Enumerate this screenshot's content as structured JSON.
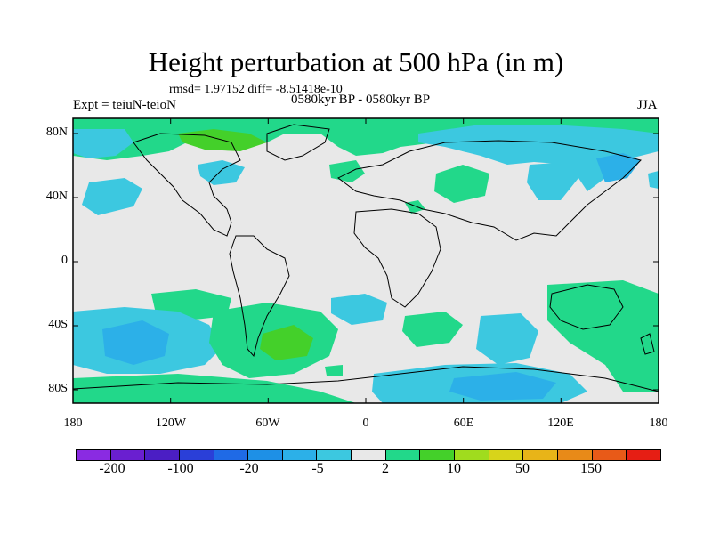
{
  "title": "Height perturbation at 500 hPa (in m)",
  "stats": "rmsd= 1.97152 diff= -8.51418e-10",
  "experiment": "Expt = teiuN-teioN",
  "period": "0580kyr BP - 0580kyr BP",
  "season": "JJA",
  "y_axis_labels": [
    "80N",
    "40N",
    "0",
    "40S",
    "80S"
  ],
  "x_axis_labels": [
    "180",
    "120W",
    "60W",
    "0",
    "60E",
    "120E",
    "180"
  ],
  "colorbar": {
    "colors": [
      "#8a2be2",
      "#6a1fd0",
      "#4b1ec4",
      "#2a3fd8",
      "#1f6ae6",
      "#1e90e6",
      "#2cb0e8",
      "#3cc8e0",
      "#e8e8e8",
      "#22d88a",
      "#44d02a",
      "#a0dc1e",
      "#d8d41a",
      "#e8b418",
      "#e88a18",
      "#e85a18",
      "#e61e14"
    ],
    "labels": [
      "-200",
      "-100",
      "-20",
      "-5",
      "2",
      "10",
      "50",
      "150"
    ]
  },
  "chart_data": {
    "type": "heatmap",
    "title": "Height perturbation at 500 hPa (in m)",
    "projection": "cylindrical equidistant",
    "xlim": [
      -180,
      180
    ],
    "ylim": [
      -90,
      90
    ],
    "x_ticks": [
      -180,
      -120,
      -60,
      0,
      60,
      120,
      180
    ],
    "y_ticks": [
      80,
      40,
      0,
      -40,
      -80
    ],
    "contour_levels": [
      -200,
      -100,
      -50,
      -20,
      -10,
      -5,
      -2,
      2,
      5,
      10,
      20,
      50,
      100,
      150,
      200
    ]
  }
}
